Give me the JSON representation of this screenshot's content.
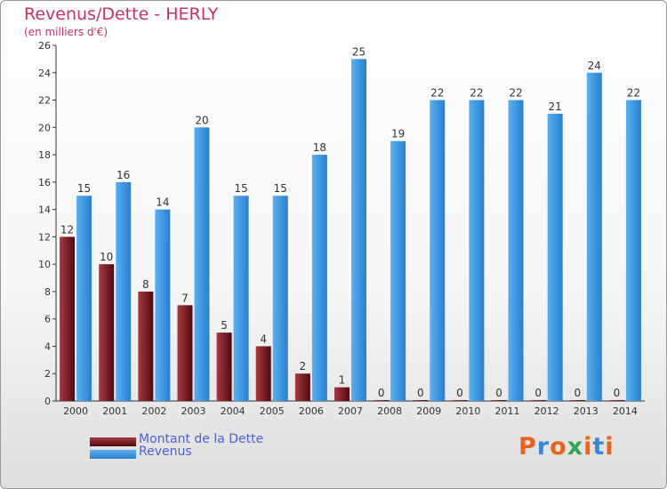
{
  "chart_data": {
    "type": "bar",
    "title": "Revenus/Dette - HERLY",
    "subtitle": "(en milliers d'€)",
    "categories": [
      "2000",
      "2001",
      "2002",
      "2003",
      "2004",
      "2005",
      "2006",
      "2007",
      "2008",
      "2009",
      "2010",
      "2011",
      "2012",
      "2013",
      "2014"
    ],
    "series": [
      {
        "name": "Montant de la Dette",
        "color": "#7a1e24",
        "values": [
          12,
          10,
          8,
          7,
          5,
          4,
          2,
          1,
          0,
          0,
          0,
          0,
          0,
          0,
          0
        ]
      },
      {
        "name": "Revenus",
        "color": "#3f9be4",
        "values": [
          15,
          16,
          14,
          20,
          15,
          15,
          18,
          25,
          19,
          22,
          22,
          22,
          21,
          24,
          22
        ]
      }
    ],
    "ylim": [
      0,
      26
    ],
    "yticks": [
      0,
      2,
      4,
      6,
      8,
      10,
      12,
      14,
      16,
      18,
      20,
      22,
      24,
      26
    ],
    "grid": false,
    "legend": "bottom-left"
  },
  "logo": {
    "letters": [
      {
        "ch": "P",
        "color": "#e8641e"
      },
      {
        "ch": "r",
        "color": "#3a86d8"
      },
      {
        "ch": "o",
        "color": "#e8641e"
      },
      {
        "ch": "x",
        "color": "#2fa84f"
      },
      {
        "ch": "i",
        "color": "#e8641e"
      },
      {
        "ch": "t",
        "color": "#3a86d8"
      },
      {
        "ch": "i",
        "color": "#e8641e"
      }
    ]
  }
}
